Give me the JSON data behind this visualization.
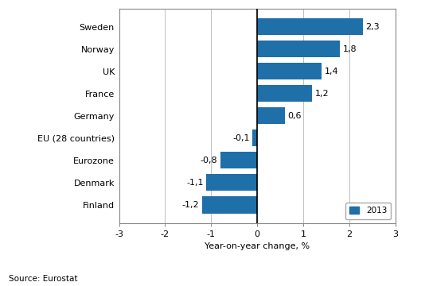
{
  "categories": [
    "Sweden",
    "Norway",
    "UK",
    "France",
    "Germany",
    "EU (28 countries)",
    "Eurozone",
    "Denmark",
    "Finland"
  ],
  "values": [
    2.3,
    1.8,
    1.4,
    1.2,
    0.6,
    -0.1,
    -0.8,
    -1.1,
    -1.2
  ],
  "bar_color": "#1f6fa8",
  "xlim": [
    -3,
    3
  ],
  "xticks": [
    -3,
    -2,
    -1,
    0,
    1,
    2,
    3
  ],
  "xlabel": "Year-on-year change, %",
  "legend_label": "2013",
  "source_text": "Source: Eurostat",
  "background_color": "#ffffff",
  "value_labels": [
    "2,3",
    "1,8",
    "1,4",
    "1,2",
    "0,6",
    "-0,1",
    "-0,8",
    "-1,1",
    "-1,2"
  ]
}
